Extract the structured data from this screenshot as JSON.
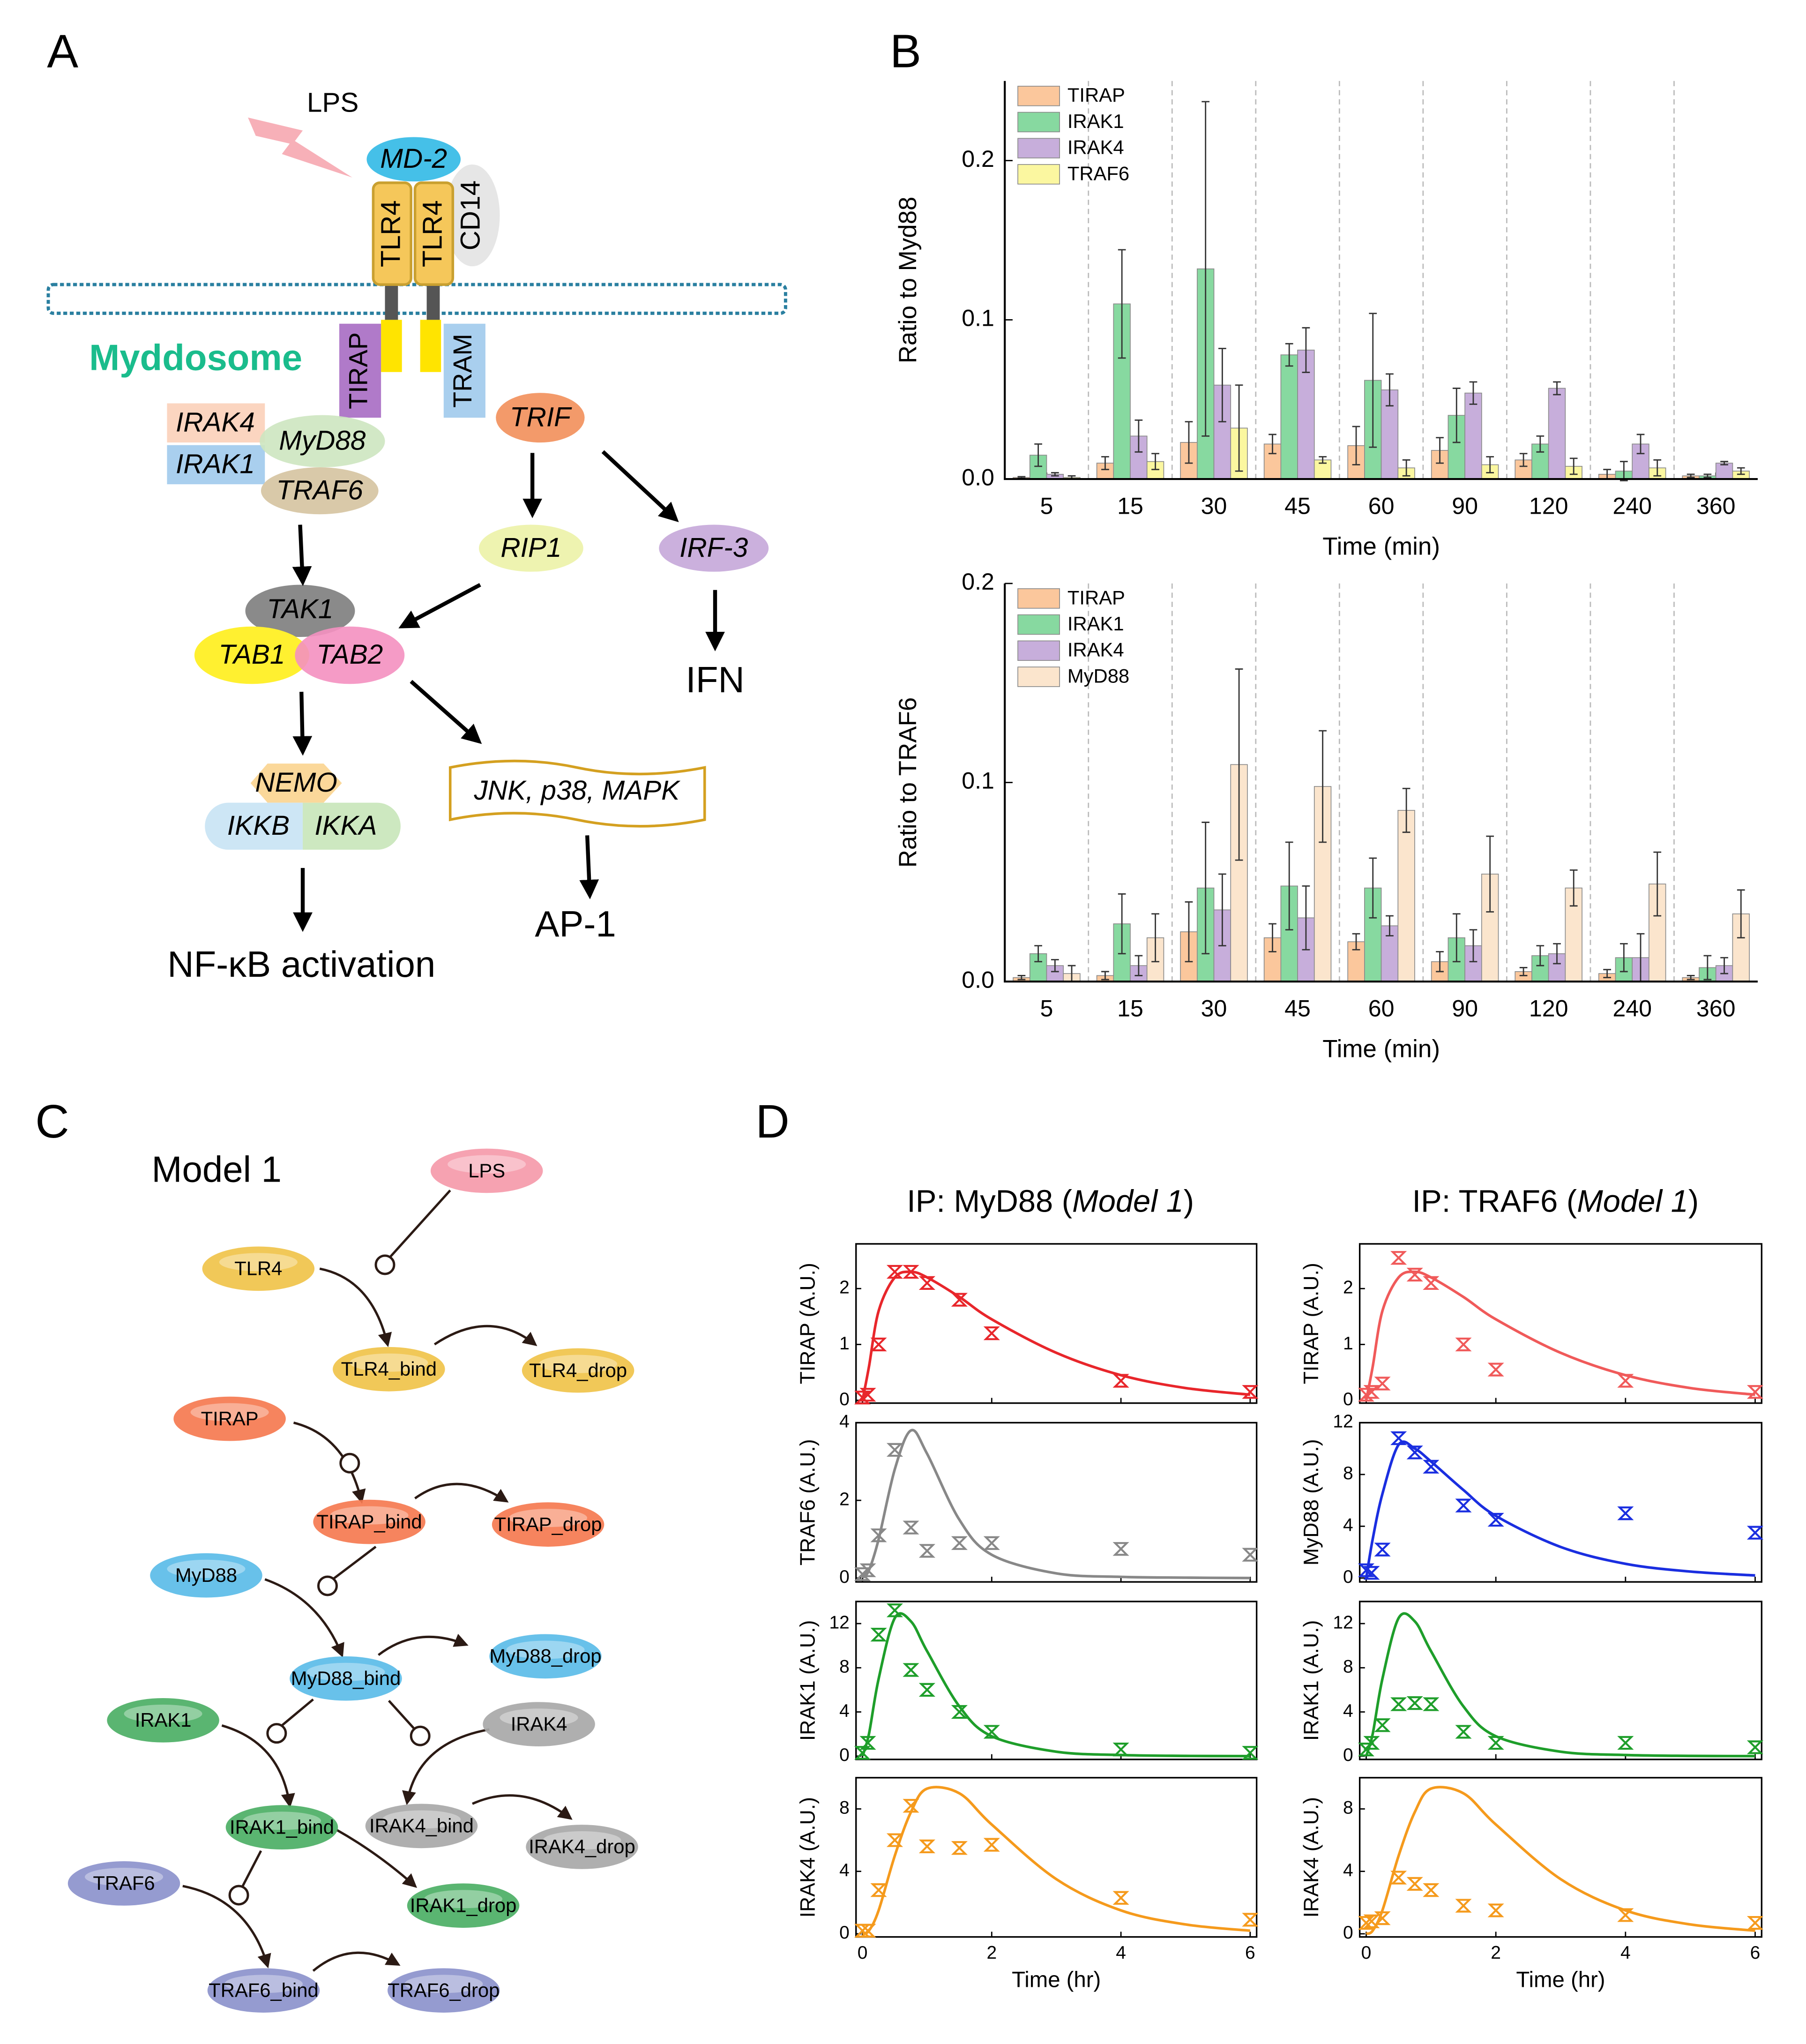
{
  "panel_a": {
    "label": "A",
    "lps": "LPS",
    "md2": "MD-2",
    "cd14": "CD14",
    "tlr4_a": "TLR4",
    "tlr4_b": "TLR4",
    "myddosome": "Myddosome",
    "tirap": "TIRAP",
    "tram": "TRAM",
    "irak4": "IRAK4",
    "irak1": "IRAK1",
    "myd88": "MyD88",
    "traf6": "TRAF6",
    "trif": "TRIF",
    "rip1": "RIP1",
    "irf3": "IRF-3",
    "tak1": "TAK1",
    "tab1": "TAB1",
    "tab2": "TAB2",
    "ifn": "IFN",
    "nemo": "NEMO",
    "ikkb": "IKKB",
    "ikka": "IKKA",
    "mapk": "JNK, p38, MAPK",
    "ap1": "AP-1",
    "nfkb": "NF-κB activation"
  },
  "panel_b": {
    "label": "B"
  },
  "panel_c": {
    "label": "C",
    "title": "Model 1",
    "nodes": [
      "LPS",
      "TLR4",
      "TLR4_bind",
      "TLR4_drop",
      "TIRAP",
      "TIRAP_bind",
      "TIRAP_drop",
      "MyD88",
      "MyD88_bind",
      "MyD88_drop",
      "IRAK1",
      "IRAK4",
      "IRAK1_bind",
      "IRAK4_bind",
      "IRAK4_drop",
      "IRAK1_drop",
      "TRAF6",
      "TRAF6_bind",
      "TRAF6_drop"
    ]
  },
  "panel_d": {
    "label": "D",
    "titles": [
      {
        "prefix": "IP: MyD88 (",
        "italic": "Model 1",
        "suffix": ")"
      },
      {
        "prefix": "IP: TRAF6 (",
        "italic": "Model 1",
        "suffix": ")"
      }
    ]
  },
  "chart_data": [
    {
      "type": "bar",
      "ylabel": "Ratio to Myd88",
      "xlabel": "Time (min)",
      "legend": "upper left",
      "category_dividers": true,
      "categories": [
        "5",
        "15",
        "30",
        "45",
        "60",
        "90",
        "120",
        "240",
        "360"
      ],
      "ylim": [
        0,
        0.25
      ],
      "yticks": [
        {
          "value": 0,
          "label": "0.0"
        },
        0.1,
        0.2
      ],
      "series": [
        {
          "name": "TIRAP",
          "color": "#fbc79c",
          "values": [
            0.001,
            0.01,
            0.023,
            0.022,
            0.021,
            0.018,
            0.012,
            0.003,
            0.002
          ],
          "errors": [
            0.0005,
            0.004,
            0.013,
            0.006,
            0.012,
            0.008,
            0.004,
            0.003,
            0.001
          ]
        },
        {
          "name": "IRAK1",
          "color": "#87d9a0",
          "values": [
            0.015,
            0.11,
            0.132,
            0.078,
            0.062,
            0.04,
            0.022,
            0.005,
            0.002
          ],
          "errors": [
            0.007,
            0.034,
            0.105,
            0.007,
            0.042,
            0.017,
            0.005,
            0.006,
            0.001
          ]
        },
        {
          "name": "IRAK4",
          "color": "#c7aedb",
          "values": [
            0.003,
            0.027,
            0.059,
            0.081,
            0.056,
            0.054,
            0.057,
            0.022,
            0.01
          ],
          "errors": [
            0.001,
            0.01,
            0.023,
            0.014,
            0.01,
            0.007,
            0.004,
            0.006,
            0.001
          ]
        },
        {
          "name": "TRAF6",
          "color": "#fbf7a0",
          "values": [
            0.001,
            0.011,
            0.032,
            0.012,
            0.007,
            0.009,
            0.008,
            0.007,
            0.005
          ],
          "errors": [
            0.001,
            0.005,
            0.027,
            0.002,
            0.005,
            0.005,
            0.005,
            0.005,
            0.002
          ]
        }
      ]
    },
    {
      "type": "bar",
      "ylabel": "Ratio to TRAF6",
      "xlabel": "Time (min)",
      "legend": "upper left",
      "category_dividers": true,
      "categories": [
        "5",
        "15",
        "30",
        "45",
        "60",
        "90",
        "120",
        "240",
        "360"
      ],
      "ylim": [
        0,
        0.2
      ],
      "yticks": [
        {
          "value": 0,
          "label": "0.0"
        },
        0.1,
        0.2
      ],
      "series": [
        {
          "name": "TIRAP",
          "color": "#fbc79c",
          "values": [
            0.002,
            0.003,
            0.025,
            0.022,
            0.02,
            0.01,
            0.005,
            0.004,
            0.002
          ],
          "errors": [
            0.001,
            0.002,
            0.015,
            0.007,
            0.004,
            0.005,
            0.002,
            0.002,
            0.001
          ]
        },
        {
          "name": "IRAK1",
          "color": "#87d9a0",
          "values": [
            0.014,
            0.029,
            0.047,
            0.048,
            0.047,
            0.022,
            0.013,
            0.012,
            0.007
          ],
          "errors": [
            0.004,
            0.015,
            0.033,
            0.022,
            0.015,
            0.012,
            0.005,
            0.007,
            0.006
          ]
        },
        {
          "name": "IRAK4",
          "color": "#c7aedb",
          "values": [
            0.008,
            0.008,
            0.036,
            0.032,
            0.028,
            0.018,
            0.014,
            0.012,
            0.008
          ],
          "errors": [
            0.003,
            0.005,
            0.018,
            0.016,
            0.005,
            0.008,
            0.005,
            0.012,
            0.004
          ]
        },
        {
          "name": "MyD88",
          "color": "#fbe5cd",
          "values": [
            0.004,
            0.022,
            0.109,
            0.098,
            0.086,
            0.054,
            0.047,
            0.049,
            0.034
          ],
          "errors": [
            0.004,
            0.012,
            0.048,
            0.028,
            0.011,
            0.019,
            0.009,
            0.016,
            0.012
          ]
        }
      ]
    },
    {
      "type": "scatter_fit",
      "ylabel": "TIRAP (A.U.)",
      "color": "#e8262b",
      "show_xtick_labels": false,
      "x": [
        0,
        0.083,
        0.25,
        0.5,
        0.75,
        1,
        1.5,
        2,
        4,
        6
      ],
      "values": [
        0.05,
        0.1,
        1.0,
        2.3,
        2.3,
        2.1,
        1.8,
        1.2,
        0.35,
        0.15
      ],
      "fit_x": [
        0,
        0.1,
        0.25,
        0.5,
        0.75,
        1,
        1.5,
        2,
        3,
        4,
        5,
        6
      ],
      "fit_values": [
        0,
        0.6,
        1.6,
        2.2,
        2.3,
        2.2,
        1.85,
        1.45,
        0.85,
        0.45,
        0.22,
        0.1
      ],
      "xlim": [
        -0.1,
        6.1
      ],
      "xticks": [
        0,
        2,
        4,
        6
      ],
      "ylim": [
        -0.05,
        2.8
      ],
      "yticks": [
        0,
        1,
        2
      ]
    },
    {
      "type": "scatter_fit",
      "ylabel": "TRAF6 (A.U.)",
      "color": "#888888",
      "show_xtick_labels": false,
      "x": [
        0,
        0.083,
        0.25,
        0.5,
        0.75,
        1,
        1.5,
        2,
        4,
        6
      ],
      "values": [
        0.1,
        0.2,
        1.1,
        3.3,
        1.3,
        0.7,
        0.9,
        0.9,
        0.75,
        0.6
      ],
      "fit_x": [
        0,
        0.1,
        0.25,
        0.5,
        0.75,
        1,
        1.5,
        2,
        3,
        4,
        5,
        6
      ],
      "fit_values": [
        0,
        0.2,
        1.0,
        2.8,
        3.8,
        3.2,
        1.5,
        0.6,
        0.12,
        0.03,
        0.01,
        0
      ],
      "xlim": [
        -0.1,
        6.1
      ],
      "xticks": [
        0,
        2,
        4,
        6
      ],
      "ylim": [
        -0.1,
        4
      ],
      "yticks": [
        0,
        2,
        4
      ]
    },
    {
      "type": "scatter_fit",
      "ylabel": "IRAK1 (A.U.)",
      "color": "#1e9e2a",
      "show_xtick_labels": false,
      "x": [
        0,
        0.083,
        0.25,
        0.5,
        0.75,
        1,
        1.5,
        2,
        4,
        6
      ],
      "values": [
        0.3,
        1.2,
        11,
        13.2,
        7.8,
        6,
        4,
        2.2,
        0.6,
        0.3
      ],
      "fit_x": [
        0,
        0.1,
        0.25,
        0.5,
        0.75,
        1,
        1.5,
        2,
        3,
        4,
        5,
        6
      ],
      "fit_values": [
        0,
        2,
        7,
        12.5,
        12.2,
        9.5,
        4.5,
        1.8,
        0.4,
        0.1,
        0.02,
        0
      ],
      "xlim": [
        -0.1,
        6.1
      ],
      "xticks": [
        0,
        2,
        4,
        6
      ],
      "ylim": [
        -0.3,
        14
      ],
      "yticks": [
        0,
        4,
        8,
        12
      ]
    },
    {
      "type": "scatter_fit",
      "ylabel": "IRAK4 (A.U.)",
      "xlabel": "Time (hr)",
      "color": "#f59a1c",
      "show_xtick_labels": true,
      "x": [
        0,
        0.083,
        0.25,
        0.5,
        0.75,
        1,
        1.5,
        2,
        4,
        6
      ],
      "values": [
        0.2,
        0.2,
        2.8,
        6,
        8.2,
        5.6,
        5.5,
        5.7,
        2.3,
        0.9
      ],
      "fit_x": [
        0,
        0.1,
        0.25,
        0.5,
        0.75,
        1,
        1.5,
        2,
        3,
        4,
        5,
        6
      ],
      "fit_values": [
        0,
        0.2,
        1.5,
        5,
        7.8,
        9.3,
        9,
        7,
        3.5,
        1.5,
        0.6,
        0.2
      ],
      "xlim": [
        -0.1,
        6.1
      ],
      "xticks": [
        0,
        2,
        4,
        6
      ],
      "ylim": [
        -0.2,
        10
      ],
      "yticks": [
        0,
        4,
        8
      ]
    },
    {
      "type": "scatter_fit",
      "ylabel": "TIRAP (A.U.)",
      "color": "#f05a5a",
      "show_xtick_labels": false,
      "x": [
        0,
        0.083,
        0.25,
        0.5,
        0.75,
        1,
        1.5,
        2,
        4,
        6
      ],
      "values": [
        0.1,
        0.15,
        0.3,
        2.55,
        2.25,
        2.1,
        1.0,
        0.55,
        0.35,
        0.15
      ],
      "fit_x": [
        0,
        0.1,
        0.25,
        0.5,
        0.75,
        1,
        1.5,
        2,
        3,
        4,
        5,
        6
      ],
      "fit_values": [
        0,
        0.6,
        1.6,
        2.2,
        2.3,
        2.2,
        1.85,
        1.45,
        0.85,
        0.45,
        0.22,
        0.1
      ],
      "xlim": [
        -0.1,
        6.1
      ],
      "xticks": [
        0,
        2,
        4,
        6
      ],
      "ylim": [
        -0.05,
        2.8
      ],
      "yticks": [
        0,
        1,
        2
      ]
    },
    {
      "type": "scatter_fit",
      "ylabel": "MyD88 (A.U.)",
      "color": "#1a2ee0",
      "show_xtick_labels": false,
      "x": [
        0,
        0.083,
        0.25,
        0.5,
        0.75,
        1,
        1.5,
        2,
        4,
        6
      ],
      "values": [
        0.6,
        0.4,
        2.2,
        10.8,
        9.7,
        8.6,
        5.6,
        4.5,
        5.0,
        3.5
      ],
      "fit_x": [
        0,
        0.1,
        0.25,
        0.5,
        0.75,
        1,
        1.5,
        2,
        3,
        4,
        5,
        6
      ],
      "fit_values": [
        0,
        3,
        6.5,
        10.3,
        10,
        9,
        6.8,
        4.8,
        2.4,
        1.1,
        0.5,
        0.2
      ],
      "xlim": [
        -0.1,
        6.1
      ],
      "xticks": [
        0,
        2,
        4,
        6
      ],
      "ylim": [
        -0.3,
        12
      ],
      "yticks": [
        0,
        4,
        8,
        12
      ]
    },
    {
      "type": "scatter_fit",
      "ylabel": "IRAK1 (A.U.)",
      "color": "#1e9e2a",
      "show_xtick_labels": false,
      "x": [
        0,
        0.083,
        0.25,
        0.5,
        0.75,
        1,
        1.5,
        2,
        4,
        6
      ],
      "values": [
        0.6,
        1.2,
        2.8,
        4.7,
        4.8,
        4.7,
        2.2,
        1.2,
        1.2,
        0.8
      ],
      "fit_x": [
        0,
        0.1,
        0.25,
        0.5,
        0.75,
        1,
        1.5,
        2,
        3,
        4,
        5,
        6
      ],
      "fit_values": [
        0,
        2,
        7,
        12.5,
        12.2,
        9.5,
        4.5,
        1.8,
        0.4,
        0.1,
        0.02,
        0
      ],
      "xlim": [
        -0.1,
        6.1
      ],
      "xticks": [
        0,
        2,
        4,
        6
      ],
      "ylim": [
        -0.3,
        14
      ],
      "yticks": [
        0,
        4,
        8,
        12
      ]
    },
    {
      "type": "scatter_fit",
      "ylabel": "IRAK4 (A.U.)",
      "xlabel": "Time (hr)",
      "color": "#f59a1c",
      "show_xtick_labels": true,
      "x": [
        0,
        0.083,
        0.25,
        0.5,
        0.75,
        1,
        1.5,
        2,
        4,
        6
      ],
      "values": [
        0.7,
        0.8,
        1.0,
        3.6,
        3.2,
        2.8,
        1.8,
        1.5,
        1.2,
        0.7
      ],
      "fit_x": [
        0,
        0.1,
        0.25,
        0.5,
        0.75,
        1,
        1.5,
        2,
        3,
        4,
        5,
        6
      ],
      "fit_values": [
        0,
        0.2,
        1.5,
        5,
        7.8,
        9.3,
        9,
        7,
        3.5,
        1.5,
        0.6,
        0.2
      ],
      "xlim": [
        -0.1,
        6.1
      ],
      "xticks": [
        0,
        2,
        4,
        6
      ],
      "ylim": [
        -0.2,
        10
      ],
      "yticks": [
        0,
        4,
        8
      ]
    }
  ]
}
